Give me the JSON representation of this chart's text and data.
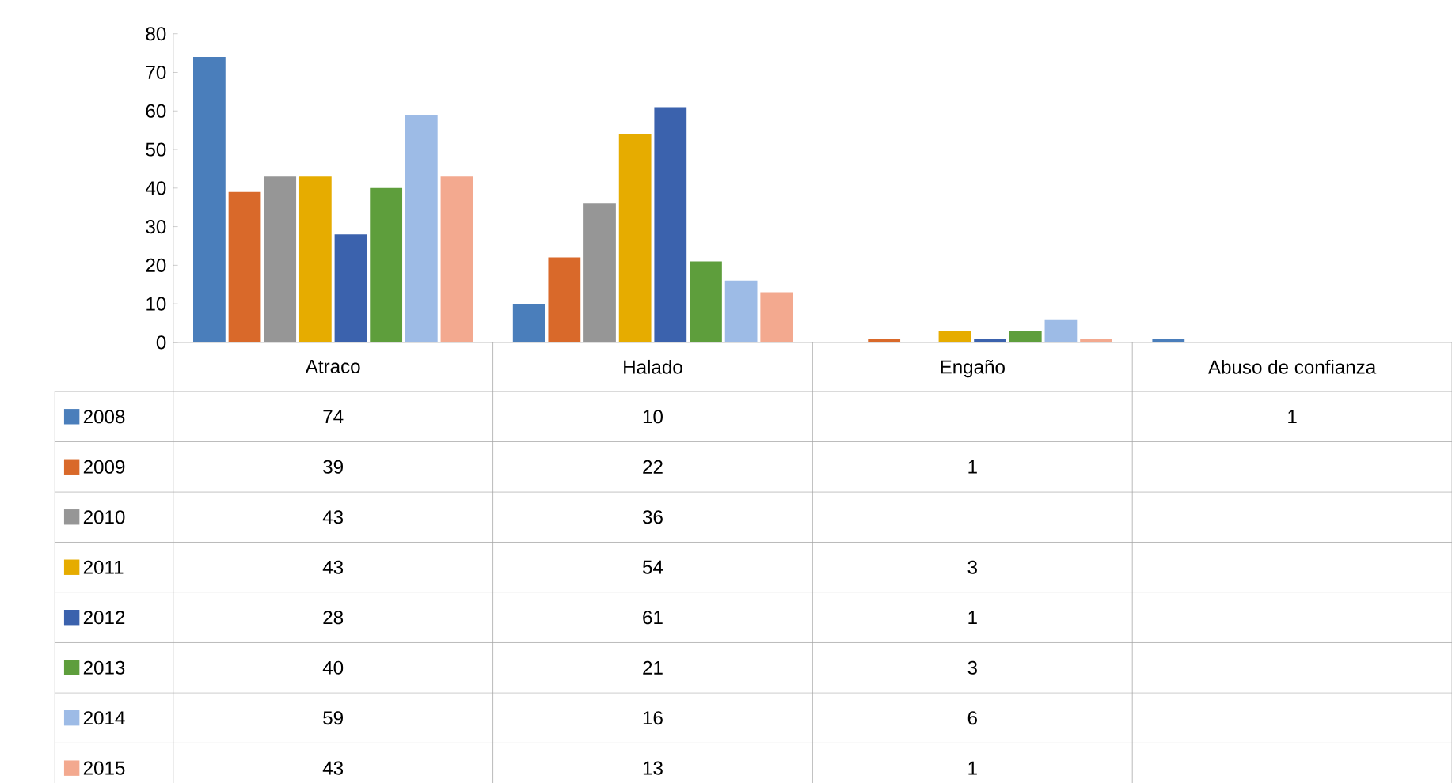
{
  "chart_data": {
    "type": "bar",
    "categories": [
      "Atraco",
      "Halado",
      "Engaño",
      "Abuso de confianza"
    ],
    "series": [
      {
        "name": "2008",
        "color": "#4a7ebb",
        "values": [
          74,
          10,
          null,
          1
        ]
      },
      {
        "name": "2009",
        "color": "#d9692a",
        "values": [
          39,
          22,
          1,
          null
        ]
      },
      {
        "name": "2010",
        "color": "#969696",
        "values": [
          43,
          36,
          null,
          null
        ]
      },
      {
        "name": "2011",
        "color": "#e6ac00",
        "values": [
          43,
          54,
          3,
          null
        ]
      },
      {
        "name": "2012",
        "color": "#3b62ad",
        "values": [
          28,
          61,
          1,
          null
        ]
      },
      {
        "name": "2013",
        "color": "#5e9e3c",
        "values": [
          40,
          21,
          3,
          null
        ]
      },
      {
        "name": "2014",
        "color": "#9dbbe6",
        "values": [
          59,
          16,
          6,
          null
        ]
      },
      {
        "name": "2015",
        "color": "#f3a98f",
        "values": [
          43,
          13,
          1,
          null
        ]
      }
    ],
    "ylim": [
      0,
      80
    ],
    "yticks": [
      0,
      10,
      20,
      30,
      40,
      50,
      60,
      70,
      80
    ],
    "data_labels": true,
    "legend": "bottom left"
  }
}
